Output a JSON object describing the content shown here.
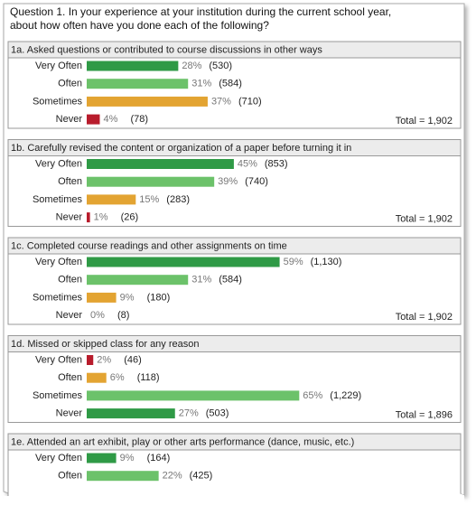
{
  "title": [
    "Question 1.  In your experience at your institution during the current school year,",
    "about how often have you done each of the following?"
  ],
  "chart_data": [
    {
      "type": "bar",
      "title": "1a. Asked questions or contributed to course discussions in other ways",
      "categories": [
        "Very Often",
        "Often",
        "Sometimes",
        "Never"
      ],
      "values": [
        28,
        31,
        37,
        4
      ],
      "value_labels": [
        "28%",
        "31%",
        "37%",
        "4%"
      ],
      "count_labels": [
        "(530)",
        "(584)",
        "(710)",
        "(78)"
      ],
      "colors": [
        "#2f9a46",
        "#6cc26a",
        "#e3a432",
        "#b81c2c"
      ],
      "total_label": "Total = 1,902"
    },
    {
      "type": "bar",
      "title": "1b. Carefully revised the content or organization of a paper before turning it in",
      "categories": [
        "Very Often",
        "Often",
        "Sometimes",
        "Never"
      ],
      "values": [
        45,
        39,
        15,
        1
      ],
      "value_labels": [
        "45%",
        "39%",
        "15%",
        "1%"
      ],
      "count_labels": [
        "(853)",
        "(740)",
        "(283)",
        "(26)"
      ],
      "colors": [
        "#2f9a46",
        "#6cc26a",
        "#e3a432",
        "#b81c2c"
      ],
      "total_label": "Total = 1,902"
    },
    {
      "type": "bar",
      "title": "1c. Completed course readings and other assignments on time",
      "categories": [
        "Very Often",
        "Often",
        "Sometimes",
        "Never"
      ],
      "values": [
        59,
        31,
        9,
        0
      ],
      "value_labels": [
        "59%",
        "31%",
        "9%",
        "0%"
      ],
      "count_labels": [
        "(1,130)",
        "(584)",
        "(180)",
        "(8)"
      ],
      "colors": [
        "#2f9a46",
        "#6cc26a",
        "#e3a432",
        "#b81c2c"
      ],
      "total_label": "Total = 1,902"
    },
    {
      "type": "bar",
      "title": "1d. Missed or skipped class for any reason",
      "categories": [
        "Very Often",
        "Often",
        "Sometimes",
        "Never"
      ],
      "values": [
        2,
        6,
        65,
        27
      ],
      "value_labels": [
        "2%",
        "6%",
        "65%",
        "27%"
      ],
      "count_labels": [
        "(46)",
        "(118)",
        "(1,229)",
        "(503)"
      ],
      "colors": [
        "#b81c2c",
        "#e3a432",
        "#6cc26a",
        "#2f9a46"
      ],
      "total_label": "Total = 1,896"
    },
    {
      "type": "bar",
      "title": "1e. Attended an art exhibit, play or other arts performance (dance, music, etc.)",
      "categories": [
        "Very Often",
        "Often"
      ],
      "values": [
        9,
        22
      ],
      "value_labels": [
        "9%",
        "22%"
      ],
      "count_labels": [
        "(164)",
        "(425)"
      ],
      "colors": [
        "#2f9a46",
        "#6cc26a"
      ]
    }
  ]
}
